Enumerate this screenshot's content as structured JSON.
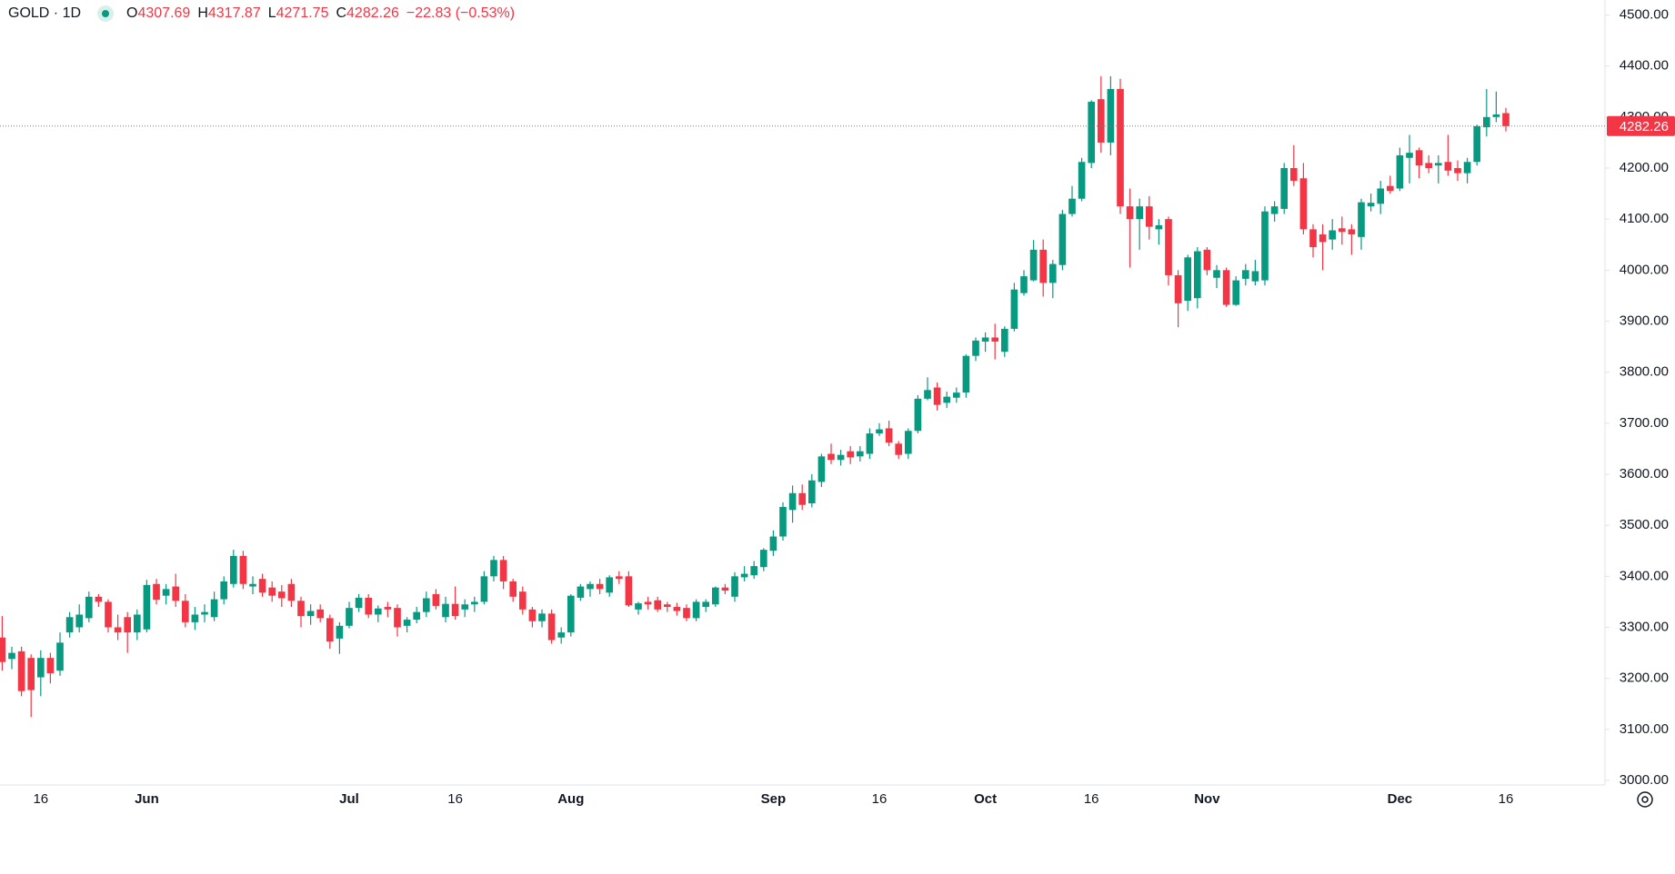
{
  "chart_data": {
    "type": "candlestick",
    "symbol": "GOLD · 1D",
    "ohlc_labels": [
      "O",
      "H",
      "L",
      "C"
    ],
    "change": "−22.83 (−0.53%)",
    "up_color": "#089981",
    "down_color": "#f23645",
    "last_price_line": true,
    "categories": [
      null,
      null,
      null,
      null,
      "16",
      null,
      null,
      null,
      null,
      null,
      null,
      null,
      null,
      null,
      null,
      "Jun",
      null,
      null,
      null,
      null,
      null,
      null,
      null,
      null,
      null,
      null,
      null,
      null,
      null,
      null,
      null,
      null,
      null,
      null,
      null,
      null,
      "Jul",
      null,
      null,
      null,
      null,
      null,
      null,
      null,
      null,
      null,
      null,
      "16",
      null,
      null,
      null,
      null,
      null,
      null,
      null,
      null,
      null,
      null,
      null,
      "Aug",
      null,
      null,
      null,
      null,
      null,
      null,
      null,
      null,
      null,
      null,
      null,
      null,
      null,
      null,
      null,
      null,
      null,
      null,
      null,
      null,
      "Sep",
      null,
      null,
      null,
      null,
      null,
      null,
      null,
      null,
      null,
      null,
      "16",
      null,
      null,
      null,
      null,
      null,
      null,
      null,
      null,
      null,
      null,
      "Oct",
      null,
      null,
      null,
      null,
      null,
      null,
      null,
      null,
      null,
      null,
      "16",
      null,
      null,
      null,
      null,
      null,
      null,
      null,
      null,
      null,
      null,
      null,
      "Nov",
      null,
      null,
      null,
      null,
      null,
      null,
      null,
      null,
      null,
      null,
      null,
      null,
      null,
      null,
      null,
      null,
      null,
      null,
      null,
      "Dec",
      null,
      null,
      null,
      null,
      null,
      null,
      null,
      null,
      null,
      null,
      "16"
    ],
    "open": [
      3280,
      3238,
      3253,
      3240,
      3202,
      3240,
      3215,
      3290,
      3300,
      3318,
      3360,
      3350,
      3300,
      3320,
      3290,
      3296,
      3385,
      3362,
      3380,
      3352,
      3310,
      3325,
      3320,
      3355,
      3385,
      3440,
      3380,
      3395,
      3378,
      3370,
      3385,
      3352,
      3322,
      3335,
      3318,
      3278,
      3303,
      3338,
      3358,
      3325,
      3340,
      3338,
      3303,
      3315,
      3330,
      3365,
      3320,
      3346,
      3335,
      3345,
      3350,
      3400,
      3432,
      3390,
      3370,
      3335,
      3312,
      3327,
      3280,
      3290,
      3358,
      3375,
      3385,
      3368,
      3400,
      3400,
      3335,
      3350,
      3353,
      3345,
      3340,
      3338,
      3318,
      3340,
      3345,
      3378,
      3360,
      3398,
      3402,
      3418,
      3450,
      3478,
      3530,
      3563,
      3543,
      3585,
      3640,
      3628,
      3645,
      3635,
      3640,
      3680,
      3690,
      3660,
      3640,
      3685,
      3748,
      3770,
      3740,
      3750,
      3760,
      3832,
      3860,
      3868,
      3840,
      3885,
      3955,
      3980,
      4040,
      3975,
      4010,
      4110,
      4140,
      4210,
      4335,
      4250,
      4355,
      4125,
      4100,
      4125,
      4080,
      4100,
      3990,
      3940,
      3945,
      4040,
      3985,
      4000,
      3932,
      3983,
      3978,
      3980,
      4110,
      4120,
      4200,
      4180,
      4080,
      4070,
      4060,
      4082,
      4080,
      4065,
      4125,
      4130,
      4165,
      4160,
      4220,
      4235,
      4210,
      4205,
      4212,
      4200,
      4190,
      4212,
      4280,
      4300,
      4307.69
    ],
    "high": [
      3322,
      3262,
      3262,
      3247,
      3255,
      3250,
      3290,
      3330,
      3345,
      3370,
      3365,
      3355,
      3325,
      3330,
      3335,
      3393,
      3395,
      3385,
      3405,
      3365,
      3340,
      3345,
      3370,
      3400,
      3452,
      3450,
      3400,
      3405,
      3390,
      3383,
      3395,
      3360,
      3345,
      3345,
      3325,
      3310,
      3350,
      3365,
      3365,
      3343,
      3350,
      3345,
      3320,
      3340,
      3370,
      3375,
      3360,
      3380,
      3355,
      3360,
      3410,
      3440,
      3440,
      3395,
      3380,
      3340,
      3335,
      3335,
      3300,
      3365,
      3385,
      3390,
      3395,
      3402,
      3410,
      3410,
      3350,
      3360,
      3360,
      3350,
      3348,
      3345,
      3355,
      3355,
      3380,
      3385,
      3408,
      3420,
      3430,
      3455,
      3490,
      3545,
      3578,
      3580,
      3600,
      3640,
      3660,
      3648,
      3655,
      3655,
      3690,
      3700,
      3705,
      3665,
      3690,
      3755,
      3790,
      3780,
      3762,
      3770,
      3835,
      3868,
      3878,
      3895,
      3890,
      3975,
      4000,
      4059,
      4060,
      4020,
      4118,
      4165,
      4220,
      4333,
      4380,
      4380,
      4375,
      4160,
      4140,
      4145,
      4100,
      4105,
      4000,
      4030,
      4045,
      4045,
      4010,
      4005,
      3988,
      4012,
      4020,
      4125,
      4135,
      4210,
      4245,
      4210,
      4090,
      4090,
      4100,
      4105,
      4090,
      4140,
      4150,
      4175,
      4185,
      4240,
      4265,
      4240,
      4225,
      4225,
      4265,
      4215,
      4220,
      4285,
      4355,
      4350,
      4317.87
    ],
    "low": [
      3215,
      3218,
      3165,
      3124,
      3165,
      3190,
      3205,
      3280,
      3290,
      3310,
      3340,
      3290,
      3275,
      3250,
      3275,
      3290,
      3345,
      3345,
      3340,
      3300,
      3295,
      3310,
      3312,
      3345,
      3378,
      3375,
      3365,
      3360,
      3350,
      3340,
      3340,
      3300,
      3305,
      3310,
      3258,
      3248,
      3298,
      3330,
      3318,
      3310,
      3320,
      3282,
      3290,
      3308,
      3320,
      3335,
      3310,
      3315,
      3320,
      3330,
      3345,
      3390,
      3375,
      3350,
      3325,
      3300,
      3300,
      3268,
      3268,
      3282,
      3352,
      3360,
      3365,
      3360,
      3385,
      3340,
      3325,
      3335,
      3330,
      3330,
      3323,
      3312,
      3312,
      3330,
      3340,
      3365,
      3350,
      3390,
      3395,
      3410,
      3440,
      3470,
      3505,
      3530,
      3535,
      3575,
      3620,
      3617,
      3620,
      3625,
      3630,
      3675,
      3655,
      3630,
      3630,
      3680,
      3745,
      3725,
      3730,
      3740,
      3750,
      3822,
      3840,
      3825,
      3830,
      3880,
      3950,
      3978,
      3948,
      3945,
      4000,
      4105,
      4135,
      4200,
      4230,
      4225,
      4110,
      4005,
      4040,
      4060,
      4050,
      3970,
      3888,
      3920,
      3925,
      3990,
      3965,
      3928,
      3930,
      3970,
      3970,
      3970,
      4095,
      4110,
      4165,
      4070,
      4025,
      4000,
      4040,
      4050,
      4030,
      4040,
      4115,
      4110,
      4150,
      4155,
      4170,
      4180,
      4190,
      4170,
      4185,
      4175,
      4170,
      4205,
      4262,
      4290,
      4271.75
    ],
    "close": [
      3232,
      3250,
      3175,
      3177,
      3240,
      3210,
      3270,
      3320,
      3325,
      3360,
      3350,
      3300,
      3290,
      3290,
      3325,
      3383,
      3354,
      3375,
      3352,
      3310,
      3325,
      3330,
      3355,
      3390,
      3440,
      3385,
      3385,
      3368,
      3362,
      3357,
      3352,
      3322,
      3332,
      3318,
      3272,
      3303,
      3338,
      3358,
      3325,
      3337,
      3335,
      3300,
      3315,
      3330,
      3357,
      3342,
      3346,
      3322,
      3345,
      3350,
      3400,
      3432,
      3390,
      3360,
      3335,
      3312,
      3327,
      3275,
      3290,
      3362,
      3380,
      3385,
      3375,
      3398,
      3395,
      3343,
      3347,
      3345,
      3335,
      3340,
      3332,
      3318,
      3350,
      3350,
      3378,
      3372,
      3400,
      3405,
      3420,
      3452,
      3478,
      3536,
      3563,
      3540,
      3588,
      3635,
      3628,
      3638,
      3633,
      3645,
      3680,
      3688,
      3662,
      3638,
      3685,
      3748,
      3765,
      3736,
      3752,
      3760,
      3832,
      3862,
      3868,
      3860,
      3885,
      3962,
      3988,
      4040,
      3975,
      4012,
      4110,
      4140,
      4212,
      4330,
      4250,
      4355,
      4125,
      4100,
      4125,
      4085,
      4088,
      3990,
      3935,
      4025,
      4037,
      4000,
      4000,
      3932,
      3980,
      4000,
      3998,
      4115,
      4125,
      4200,
      4175,
      4080,
      4045,
      4055,
      4078,
      4075,
      4070,
      4133,
      4132,
      4160,
      4155,
      4225,
      4230,
      4205,
      4200,
      4210,
      4195,
      4190,
      4212,
      4282,
      4300,
      4305.09,
      4282.26
    ],
    "ylim": [
      3000,
      4500
    ],
    "yticks": [
      {
        "value": 3000,
        "label": "3000.00"
      },
      {
        "value": 3100,
        "label": "3100.00"
      },
      {
        "value": 3200,
        "label": "3200.00"
      },
      {
        "value": 3300,
        "label": "3300.00"
      },
      {
        "value": 3400,
        "label": "3400.00"
      },
      {
        "value": 3500,
        "label": "3500.00"
      },
      {
        "value": 3600,
        "label": "3600.00"
      },
      {
        "value": 3700,
        "label": "3700.00"
      },
      {
        "value": 3800,
        "label": "3800.00"
      },
      {
        "value": 3900,
        "label": "3900.00"
      },
      {
        "value": 4000,
        "label": "4000.00"
      },
      {
        "value": 4100,
        "label": "4100.00"
      },
      {
        "value": 4200,
        "label": "4200.00"
      },
      {
        "value": 4300,
        "label": "4300.00"
      },
      {
        "value": 4400,
        "label": "4400.00"
      },
      {
        "value": 4500,
        "label": "4500.00"
      }
    ]
  }
}
